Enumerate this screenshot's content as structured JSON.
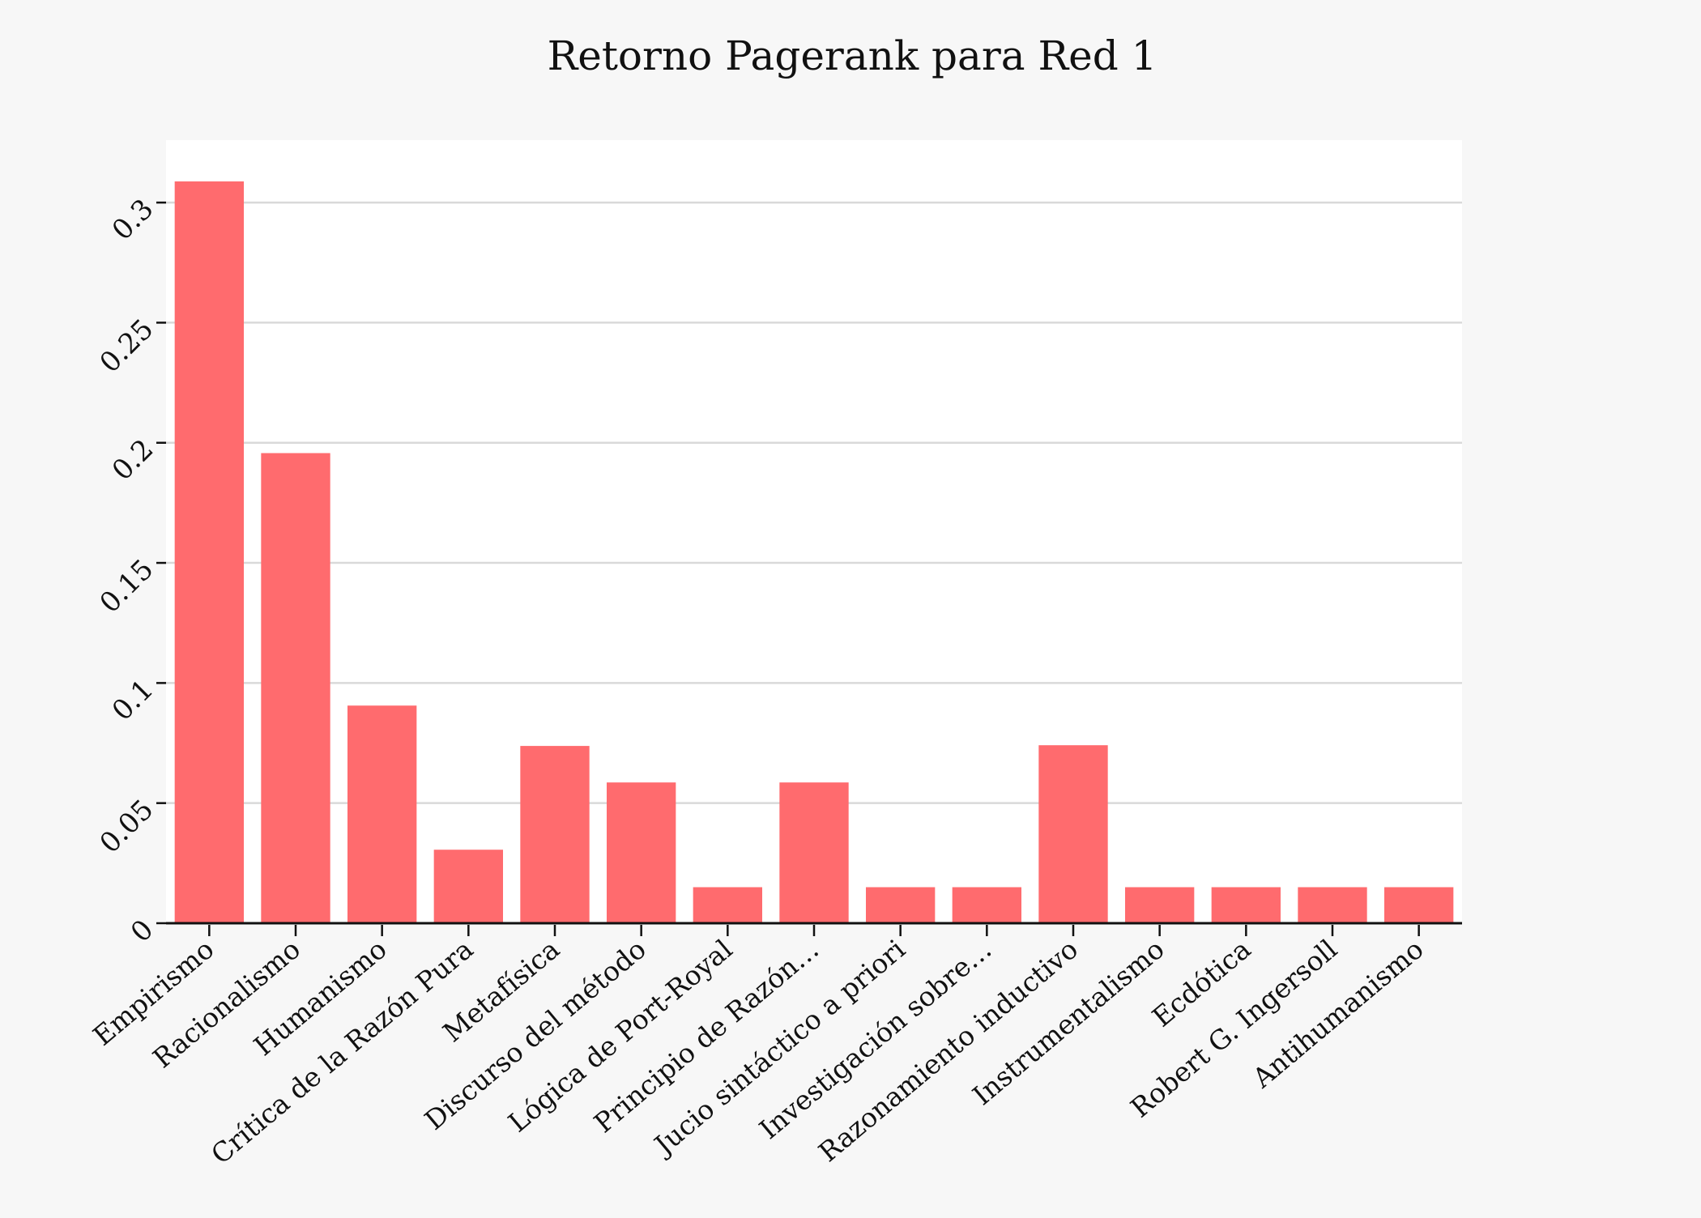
{
  "chart_data": {
    "type": "bar",
    "title": "Retorno Pagerank para Red 1",
    "xlabel": "",
    "ylabel": "",
    "categories": [
      "Empirismo",
      "Racionalismo",
      "Humanismo",
      "Crítica de la Razón Pura",
      "Metafísica",
      "Discurso del método",
      "Lógica de Port-Royal",
      "Principio de Razón…",
      "Jucio sintáctico a priori",
      "Investigación sobre…",
      "Razonamiento inductivo",
      "Instrumentalismo",
      "Ecdótica",
      "Robert G. Ingersoll",
      "Antihumanismo"
    ],
    "values": [
      0.3088,
      0.1957,
      0.0906,
      0.0306,
      0.0738,
      0.0586,
      0.015,
      0.0586,
      0.015,
      0.015,
      0.0741,
      0.015,
      0.015,
      0.015,
      0.015
    ],
    "ylim": [
      0,
      0.326
    ],
    "yticks": [
      0,
      0.05,
      0.1,
      0.15,
      0.2,
      0.25,
      0.3
    ],
    "ytick_labels": [
      "0",
      "0.05",
      "0.1",
      "0.15",
      "0.2",
      "0.25",
      "0.3"
    ],
    "grid": true,
    "legend": "none",
    "colors": {
      "bar": "#ff6b6e",
      "plot_background": "#ffffff",
      "page_background": "#f7f7f7",
      "grid": "#d9d9d9",
      "axis": "#111111"
    }
  }
}
